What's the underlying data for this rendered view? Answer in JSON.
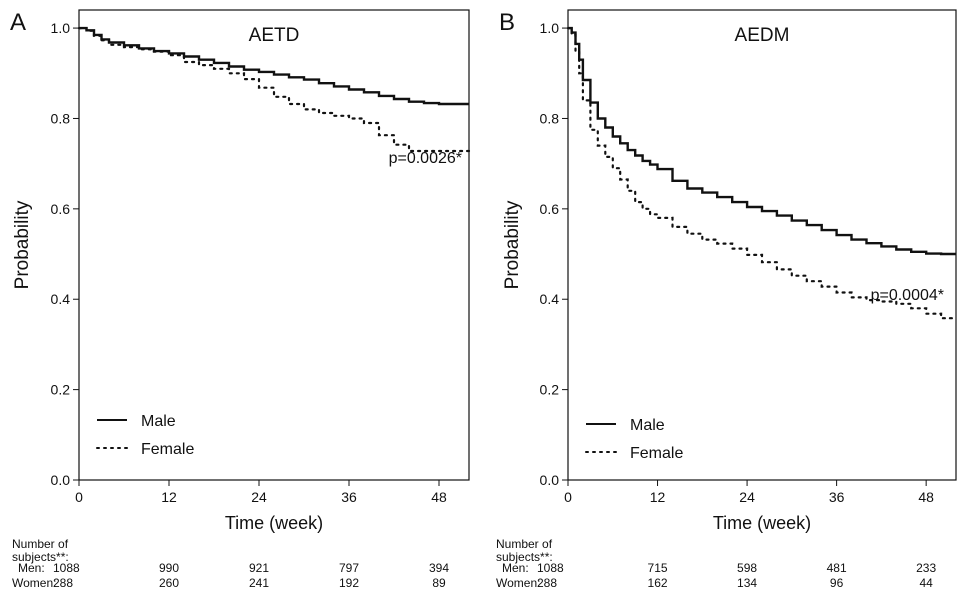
{
  "chart_data": [
    {
      "type": "line",
      "panel_label": "A",
      "title": "AETD",
      "xlabel": "Time (week)",
      "ylabel": "Probability",
      "xlim": [
        0,
        52
      ],
      "ylim": [
        0,
        1.04
      ],
      "x_ticks": [
        0,
        12,
        24,
        36,
        48
      ],
      "y_ticks": [
        0.0,
        0.2,
        0.4,
        0.6,
        0.8,
        1.0
      ],
      "y_tick_labels": [
        "0.0",
        "0.2",
        "0.4",
        "0.6",
        "0.8",
        "1.0"
      ],
      "annotation": "p=0.0026*",
      "legend_position": "bottom-left",
      "grid": false,
      "series": [
        {
          "name": "Male",
          "line_style": "solid",
          "x": [
            0,
            1,
            2,
            3,
            4,
            6,
            8,
            10,
            12,
            14,
            16,
            18,
            20,
            22,
            24,
            26,
            28,
            30,
            32,
            34,
            36,
            38,
            40,
            42,
            44,
            46,
            48,
            50,
            52
          ],
          "y": [
            1.0,
            0.995,
            0.985,
            0.975,
            0.968,
            0.962,
            0.955,
            0.949,
            0.944,
            0.937,
            0.93,
            0.923,
            0.915,
            0.908,
            0.903,
            0.897,
            0.891,
            0.886,
            0.878,
            0.871,
            0.864,
            0.858,
            0.85,
            0.843,
            0.837,
            0.834,
            0.832,
            0.832,
            0.832
          ]
        },
        {
          "name": "Female",
          "line_style": "dotted",
          "x": [
            0,
            1,
            2,
            3,
            4,
            6,
            8,
            10,
            12,
            14,
            16,
            18,
            20,
            22,
            24,
            26,
            28,
            30,
            32,
            34,
            36,
            38,
            40,
            42,
            44,
            46,
            48,
            50,
            52
          ],
          "y": [
            1.0,
            0.994,
            0.983,
            0.973,
            0.963,
            0.958,
            0.953,
            0.948,
            0.94,
            0.925,
            0.918,
            0.91,
            0.9,
            0.887,
            0.868,
            0.848,
            0.832,
            0.82,
            0.812,
            0.806,
            0.8,
            0.79,
            0.763,
            0.742,
            0.728,
            0.728,
            0.728,
            0.728,
            0.728
          ]
        }
      ],
      "risk_table": {
        "caption": "Number of\nsubjects**:",
        "columns_x": [
          0,
          12,
          24,
          36,
          48
        ],
        "rows": [
          {
            "label": "Men:",
            "values": [
              "1088",
              "990",
              "921",
              "797",
              "394"
            ]
          },
          {
            "label": "Women:",
            "values": [
              "288",
              "260",
              "241",
              "192",
              "89"
            ]
          }
        ]
      }
    },
    {
      "type": "line",
      "panel_label": "B",
      "title": "AEDM",
      "xlabel": "Time (week)",
      "ylabel": "Probability",
      "xlim": [
        0,
        52
      ],
      "ylim": [
        0,
        1.04
      ],
      "x_ticks": [
        0,
        12,
        24,
        36,
        48
      ],
      "y_ticks": [
        0.0,
        0.2,
        0.4,
        0.6,
        0.8,
        1.0
      ],
      "y_tick_labels": [
        "0.0",
        "0.2",
        "0.4",
        "0.6",
        "0.8",
        "1.0"
      ],
      "annotation": "p=0.0004*",
      "legend_position": "bottom-left",
      "grid": false,
      "series": [
        {
          "name": "Male",
          "line_style": "solid",
          "x": [
            0,
            0.5,
            1,
            1.5,
            2,
            3,
            4,
            5,
            6,
            7,
            8,
            9,
            10,
            11,
            12,
            14,
            16,
            18,
            20,
            22,
            24,
            26,
            28,
            30,
            32,
            34,
            36,
            38,
            40,
            42,
            44,
            46,
            48,
            50,
            52
          ],
          "y": [
            1.0,
            0.99,
            0.965,
            0.93,
            0.885,
            0.835,
            0.8,
            0.78,
            0.76,
            0.745,
            0.73,
            0.718,
            0.706,
            0.698,
            0.688,
            0.662,
            0.645,
            0.636,
            0.626,
            0.615,
            0.604,
            0.595,
            0.585,
            0.574,
            0.564,
            0.553,
            0.542,
            0.532,
            0.524,
            0.517,
            0.51,
            0.505,
            0.501,
            0.5,
            0.5
          ]
        },
        {
          "name": "Female",
          "line_style": "dotted",
          "x": [
            0,
            0.5,
            1,
            1.5,
            2,
            3,
            4,
            5,
            6,
            7,
            8,
            9,
            10,
            11,
            12,
            14,
            16,
            18,
            20,
            22,
            24,
            26,
            28,
            30,
            32,
            34,
            36,
            38,
            40,
            42,
            44,
            46,
            48,
            50,
            52
          ],
          "y": [
            1.0,
            0.985,
            0.95,
            0.9,
            0.84,
            0.775,
            0.74,
            0.715,
            0.69,
            0.665,
            0.64,
            0.615,
            0.6,
            0.588,
            0.58,
            0.56,
            0.545,
            0.532,
            0.523,
            0.512,
            0.498,
            0.482,
            0.466,
            0.452,
            0.44,
            0.428,
            0.415,
            0.404,
            0.398,
            0.395,
            0.39,
            0.38,
            0.368,
            0.358,
            0.358
          ]
        }
      ],
      "risk_table": {
        "caption": "Number of\nsubjects**:",
        "columns_x": [
          0,
          12,
          24,
          36,
          48
        ],
        "rows": [
          {
            "label": "Men:",
            "values": [
              "1088",
              "715",
              "598",
              "481",
              "233"
            ]
          },
          {
            "label": "Women:",
            "values": [
              "288",
              "162",
              "134",
              "96",
              "44"
            ]
          }
        ]
      }
    }
  ]
}
